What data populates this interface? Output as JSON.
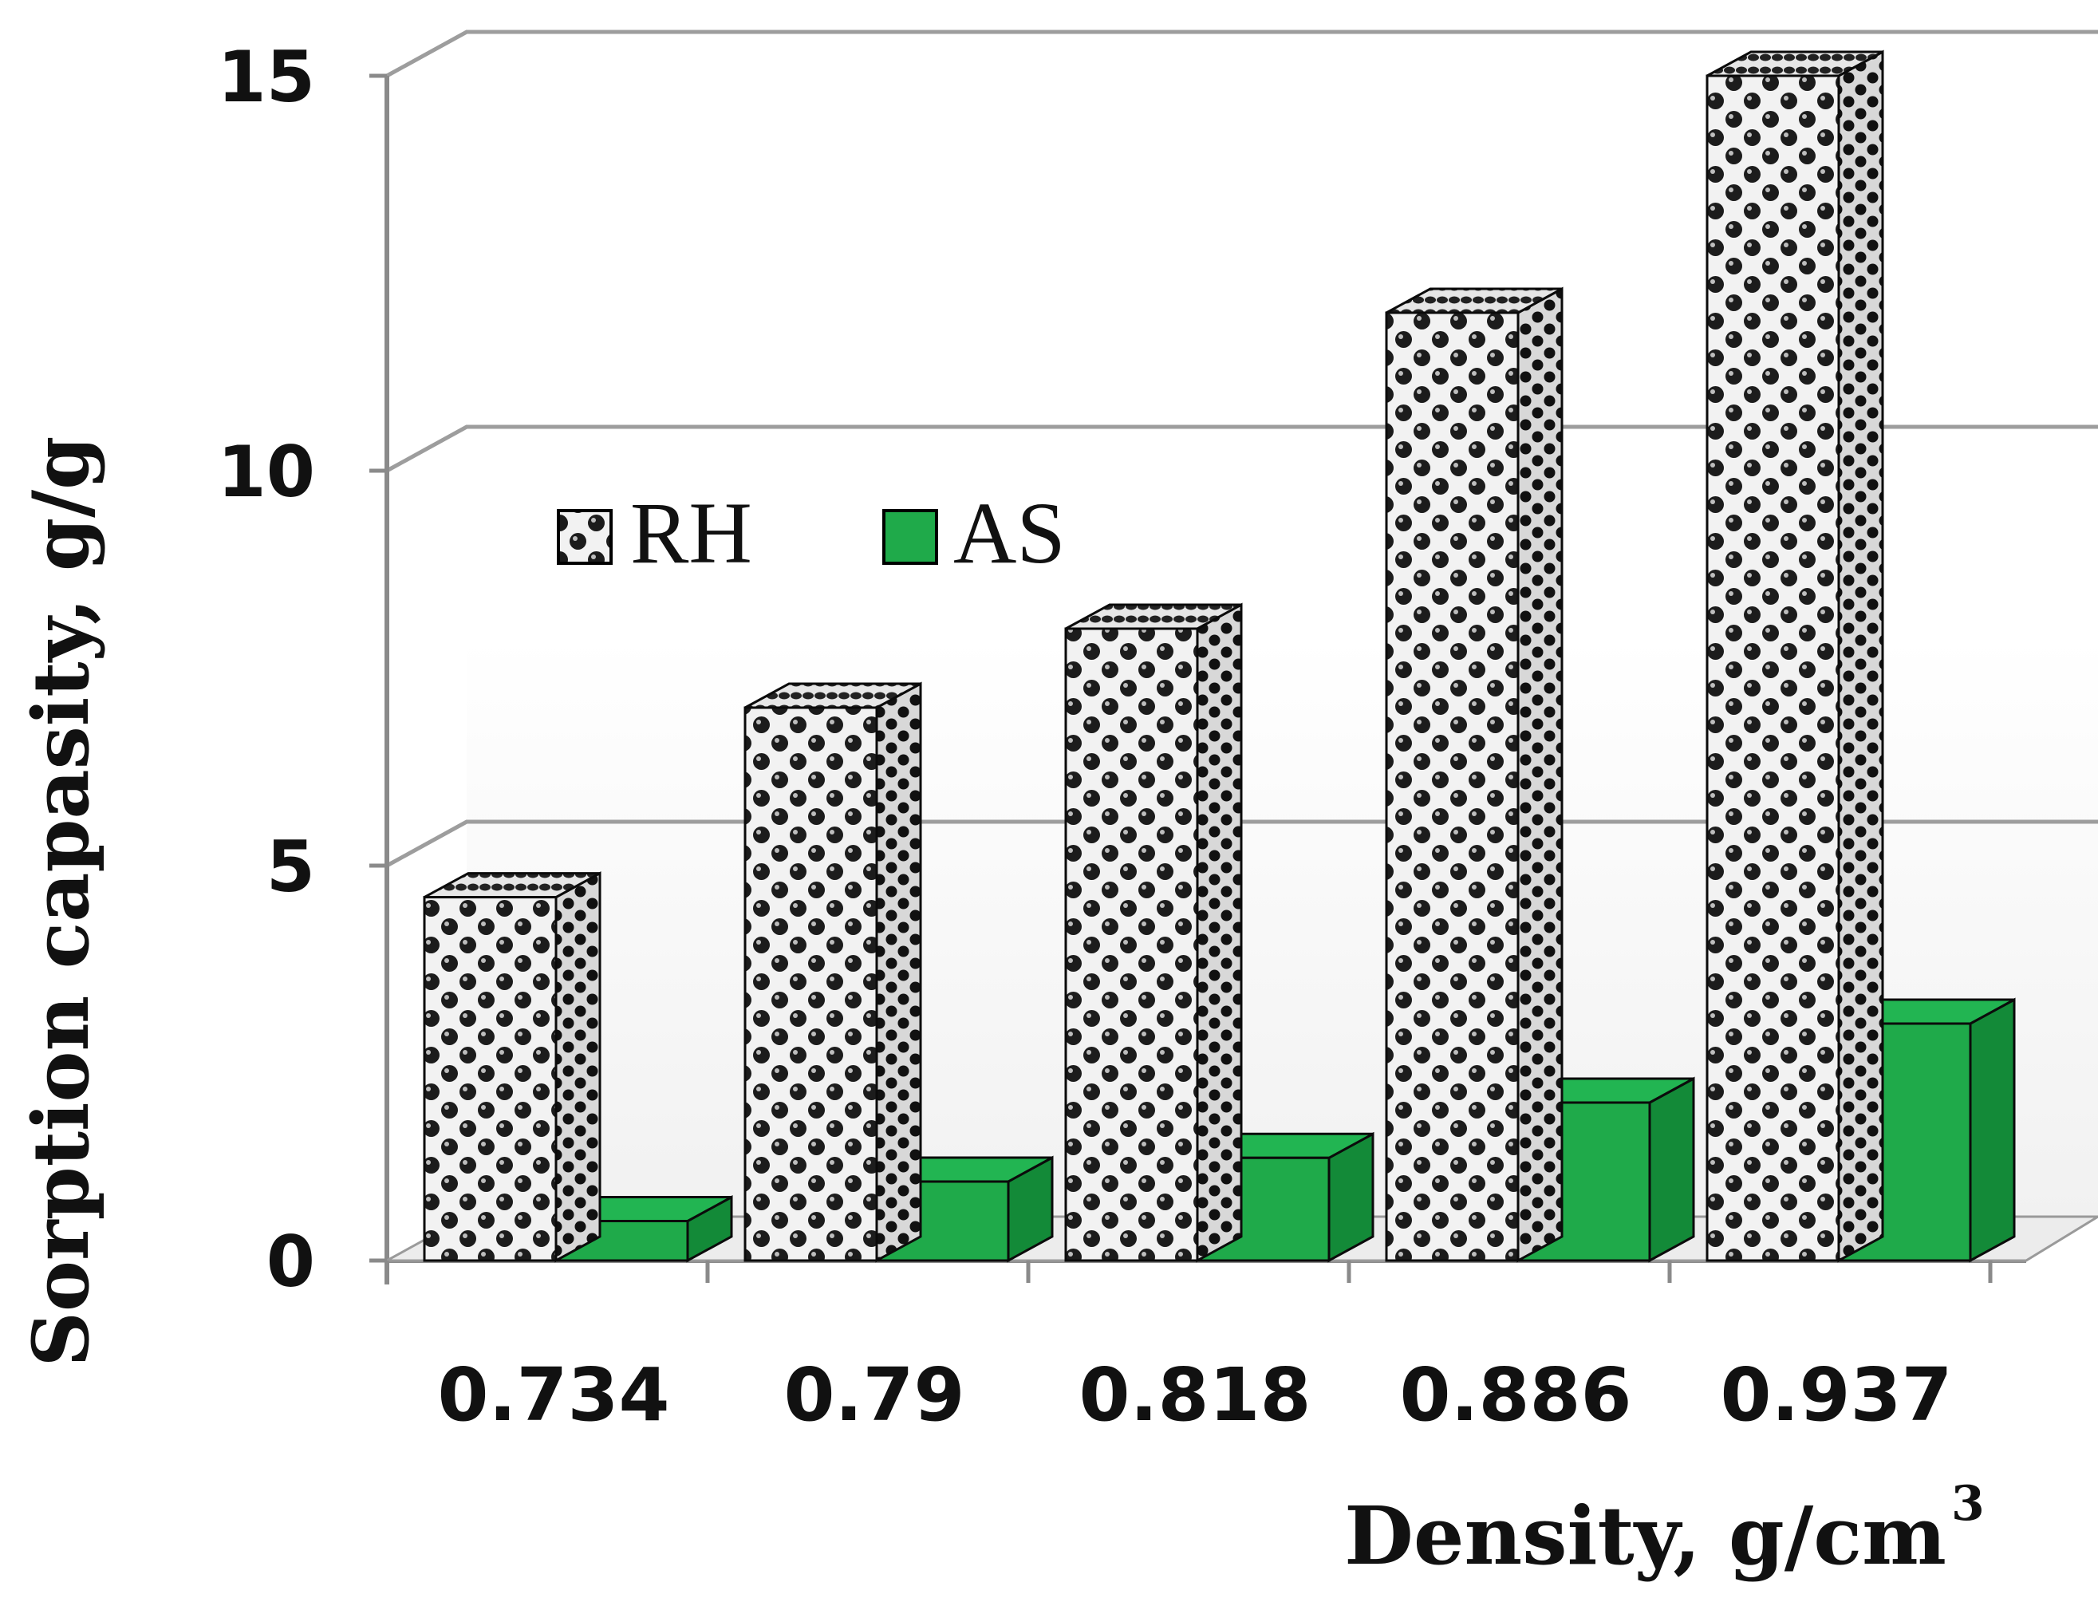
{
  "chart_data": {
    "type": "bar",
    "title": "",
    "categories": [
      "0.734",
      "0.79",
      "0.818",
      "0.886",
      "0.937"
    ],
    "series": [
      {
        "name": "RH",
        "values": [
          4.6,
          7.0,
          8.0,
          12.0,
          15.0
        ],
        "color": "#2b2b2b"
      },
      {
        "name": "AS",
        "values": [
          0.5,
          1.0,
          1.3,
          2.0,
          3.0
        ],
        "color": "#1faa4a"
      }
    ],
    "ylim": [
      0,
      15
    ],
    "yticks": [
      0,
      5,
      10,
      15
    ],
    "ylabel": "Sorption capasity, g/g",
    "xlabel": "Density, g/cm",
    "xlabel_sup": "3",
    "legend_position": "upper-left",
    "grid": true
  }
}
